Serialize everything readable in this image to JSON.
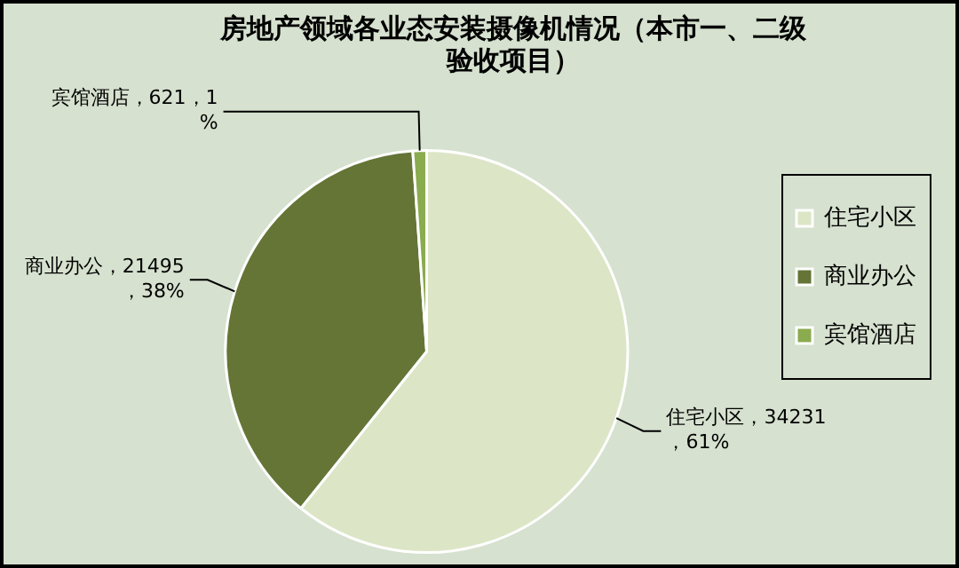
{
  "chart_data": {
    "type": "pie",
    "title": "房地产领域各业态安装摄像机情况（本市一、二级验收项目）",
    "categories": [
      "住宅小区",
      "商业办公",
      "宾馆酒店"
    ],
    "values": [
      34231,
      21495,
      621
    ],
    "colors": [
      "#dce5c6",
      "#647536",
      "#8aab4e"
    ],
    "value_labels": [
      "住宅小区，34231，61%",
      "商业办公，21495，38%",
      "宾馆酒店，621，1%"
    ],
    "legend": "right"
  }
}
